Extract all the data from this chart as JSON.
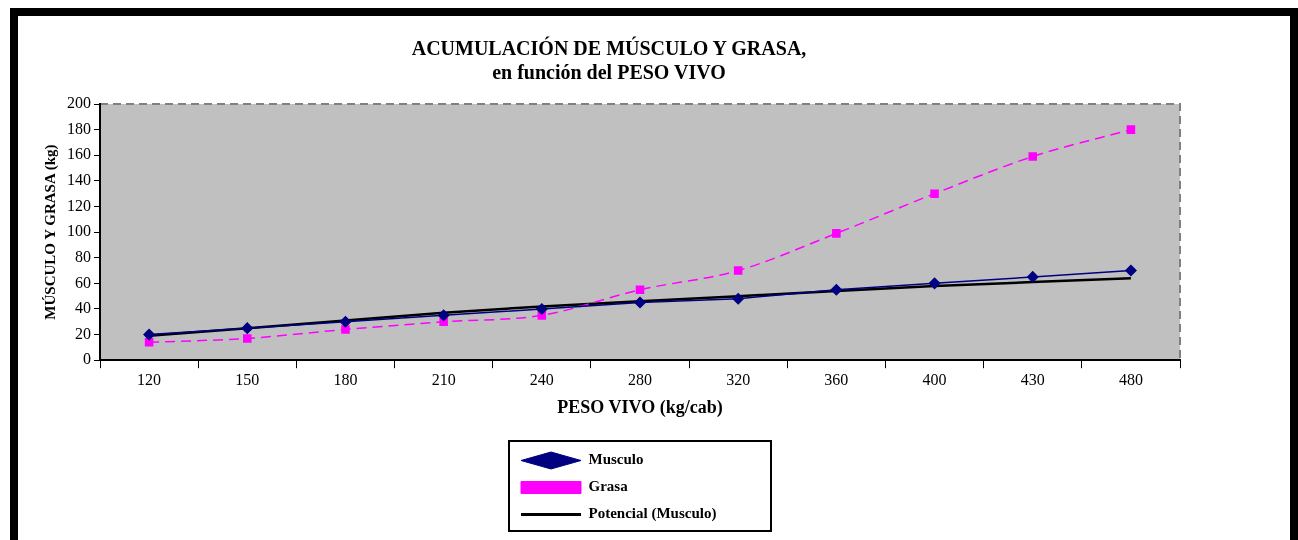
{
  "chart_data": {
    "type": "line",
    "title": "ACUMULACIÓN DE MÚSCULO Y GRASA,\nen función del PESO VIVO",
    "xlabel": "PESO VIVO (kg/cab)",
    "ylabel": "MÚSCULO Y GRASA (kg)",
    "categories": [
      "120",
      "150",
      "180",
      "210",
      "240",
      "280",
      "320",
      "360",
      "400",
      "430",
      "480"
    ],
    "ylim": [
      0,
      200
    ],
    "yticks": [
      0,
      20,
      40,
      60,
      80,
      100,
      120,
      140,
      160,
      180,
      200
    ],
    "grid": false,
    "legend": "bottom",
    "series": [
      {
        "name": "Musculo",
        "color": "#000080",
        "marker": "diamond",
        "line_style": "solid",
        "values": [
          20,
          25,
          30,
          35,
          40,
          45,
          48,
          55,
          60,
          65,
          70
        ]
      },
      {
        "name": "Grasa",
        "color": "#ff00ff",
        "marker": "square",
        "line_style": "dashed",
        "values": [
          14,
          17,
          24,
          30,
          35,
          55,
          70,
          99,
          130,
          159,
          180
        ]
      },
      {
        "name": "Potencial (Musculo)",
        "color": "#000000",
        "marker": "none",
        "line_style": "solid",
        "values": [
          19,
          25,
          31,
          37,
          42,
          46,
          50,
          54,
          58,
          61,
          64
        ]
      }
    ]
  }
}
